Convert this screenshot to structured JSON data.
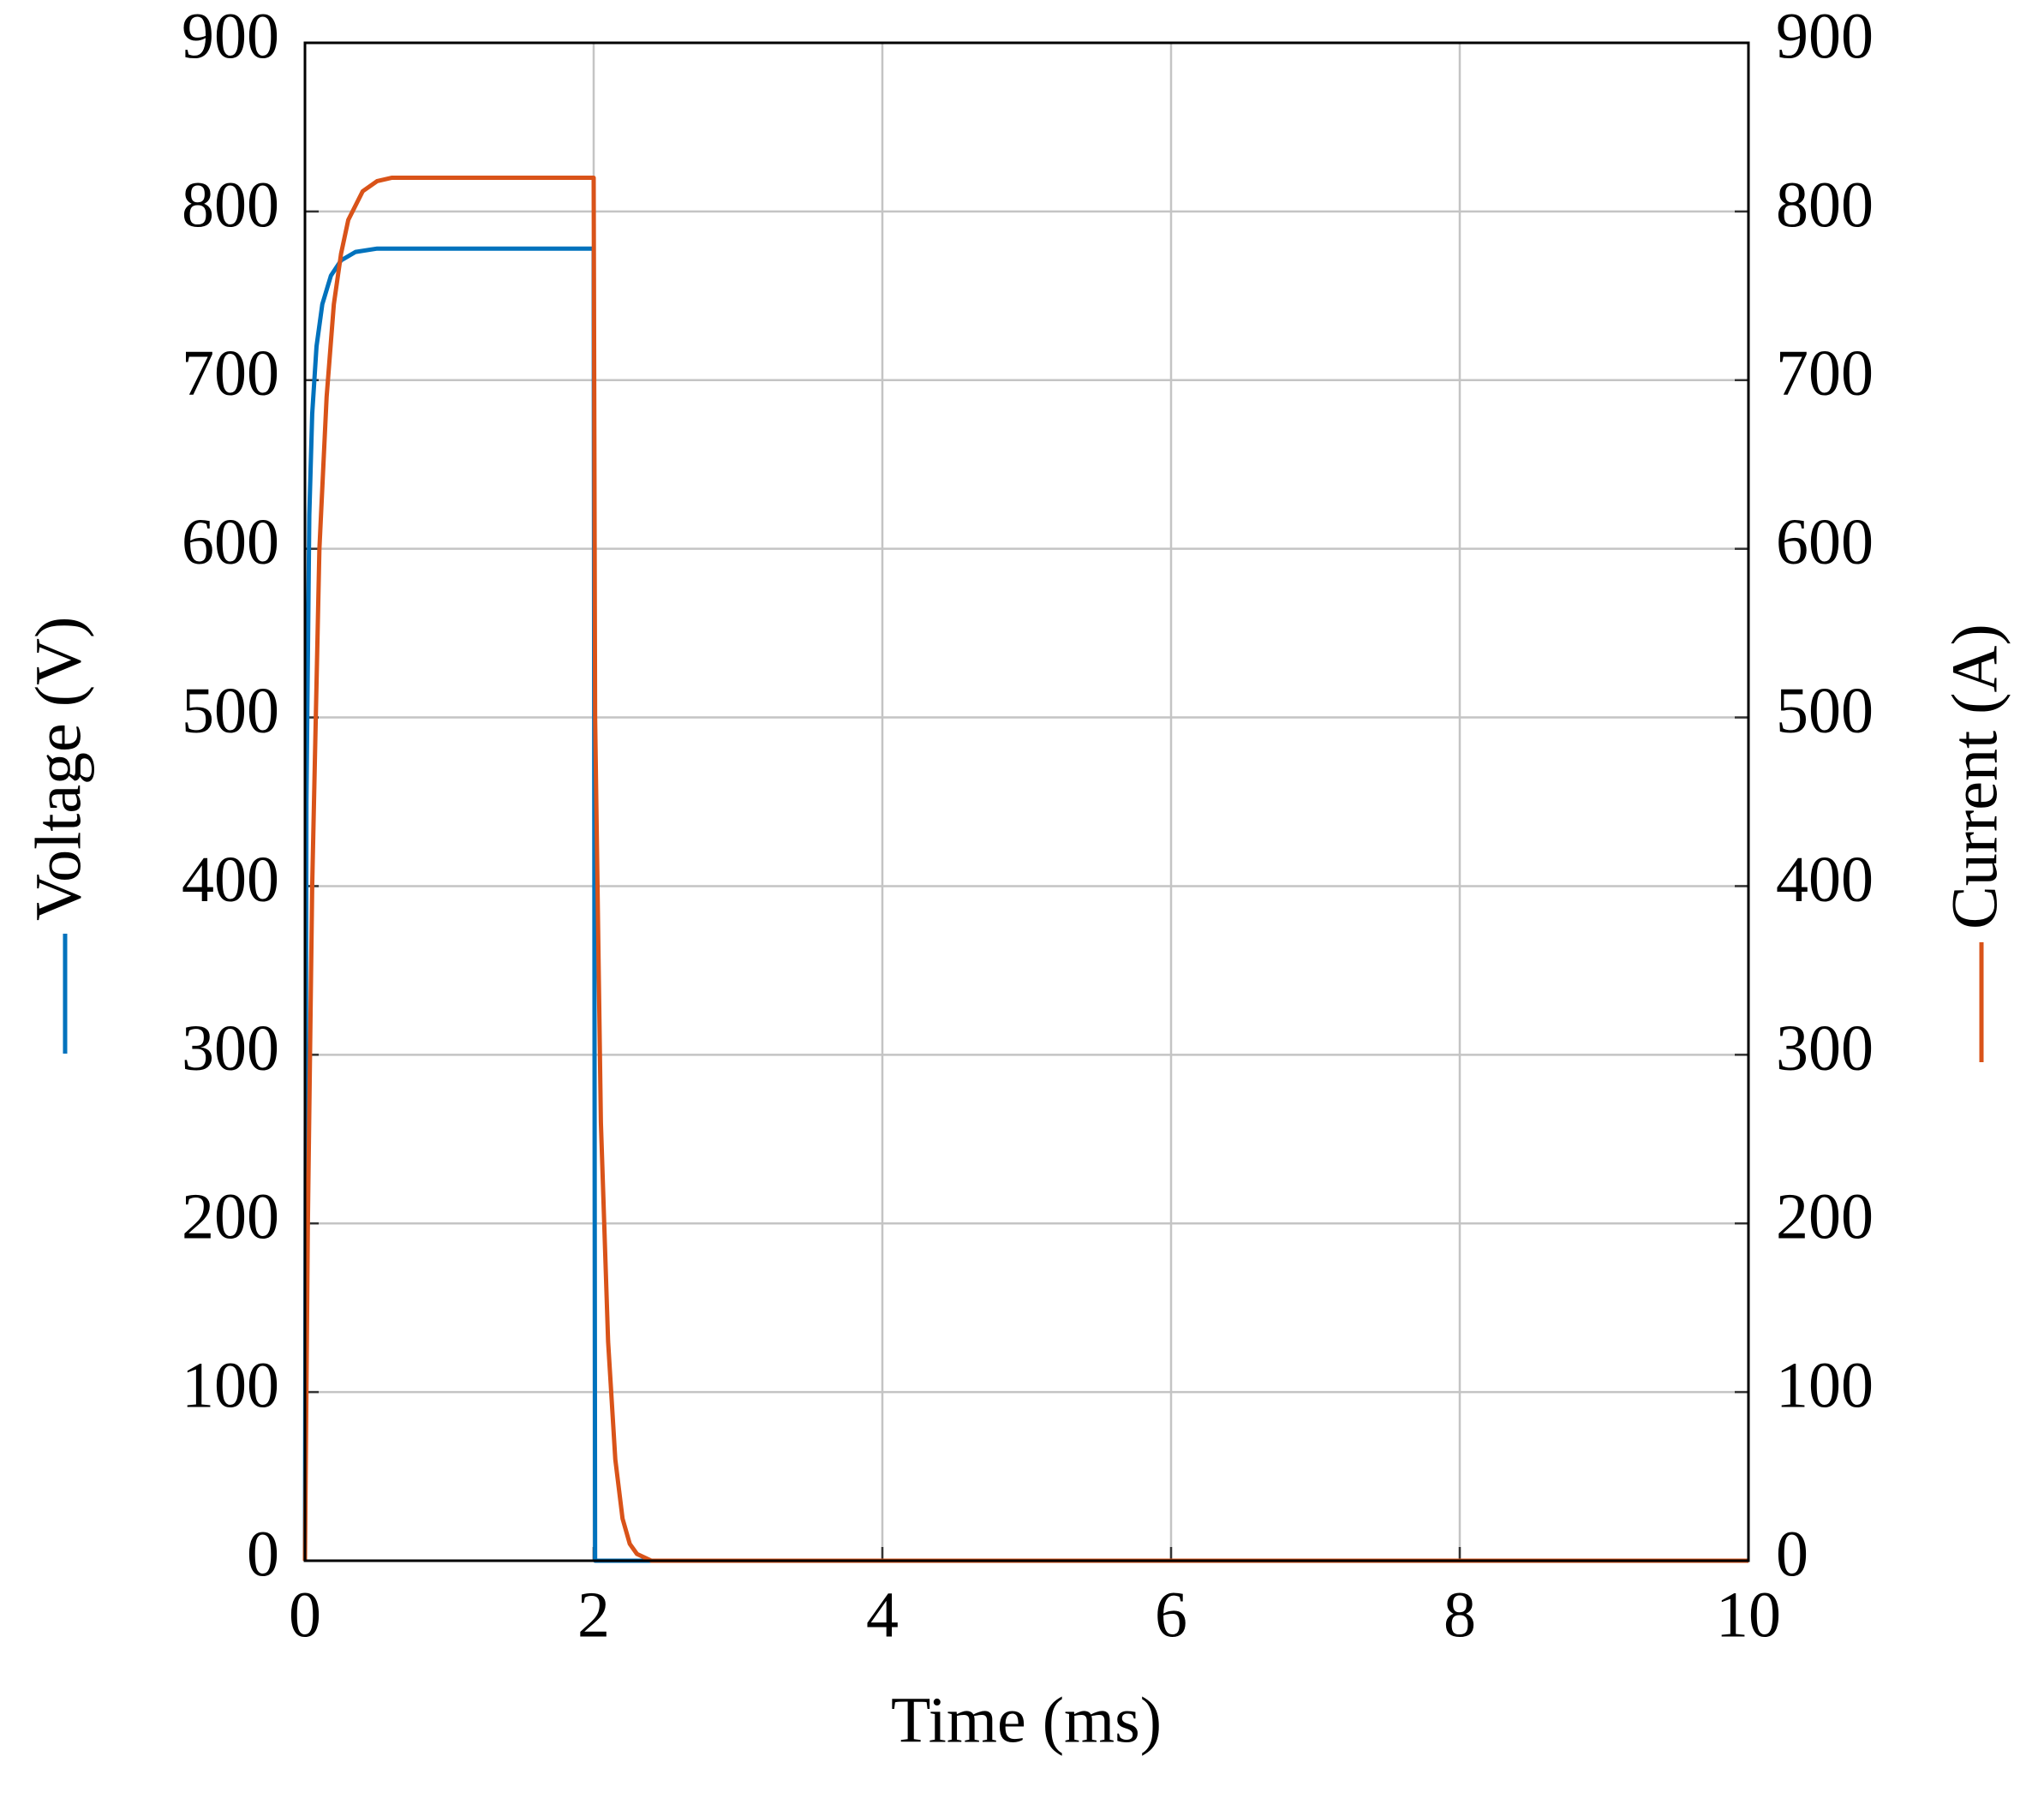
{
  "chart_data": {
    "type": "line",
    "xlabel": "Time (ms)",
    "ylabel": "Voltage (V)",
    "y2label": "Current (A)",
    "xlim": [
      0,
      10
    ],
    "xticks": [
      0,
      2,
      4,
      6,
      8,
      10
    ],
    "ylim": [
      0,
      900
    ],
    "yticks": [
      0,
      100,
      200,
      300,
      400,
      500,
      600,
      700,
      800,
      900
    ],
    "y2lim": [
      0,
      900
    ],
    "y2ticks": [
      0,
      100,
      200,
      300,
      400,
      500,
      600,
      700,
      800,
      900
    ],
    "grid": true,
    "series": [
      {
        "color": "#0072bd",
        "x": [
          0,
          0.01,
          0.03,
          0.05,
          0.08,
          0.12,
          0.18,
          0.25,
          0.35,
          0.5,
          0.7,
          1.0,
          1.5,
          1.99,
          2.0,
          2.01,
          10
        ],
        "values": [
          0,
          450,
          620,
          680,
          720,
          745,
          762,
          771,
          776,
          778,
          778,
          778,
          778,
          778,
          778,
          0,
          0
        ]
      },
      {
        "color": "#d95319",
        "axis": "y2",
        "x": [
          0,
          0.02,
          0.05,
          0.1,
          0.15,
          0.2,
          0.25,
          0.3,
          0.4,
          0.5,
          0.6,
          0.8,
          1.0,
          1.5,
          2.0,
          2.01,
          2.05,
          2.1,
          2.15,
          2.2,
          2.25,
          2.3,
          2.4,
          2.5,
          10
        ],
        "values": [
          0,
          200,
          400,
          600,
          690,
          745,
          775,
          795,
          812,
          818,
          820,
          820,
          820,
          820,
          820,
          500,
          260,
          130,
          60,
          25,
          10,
          4,
          0,
          0,
          0
        ]
      }
    ]
  }
}
